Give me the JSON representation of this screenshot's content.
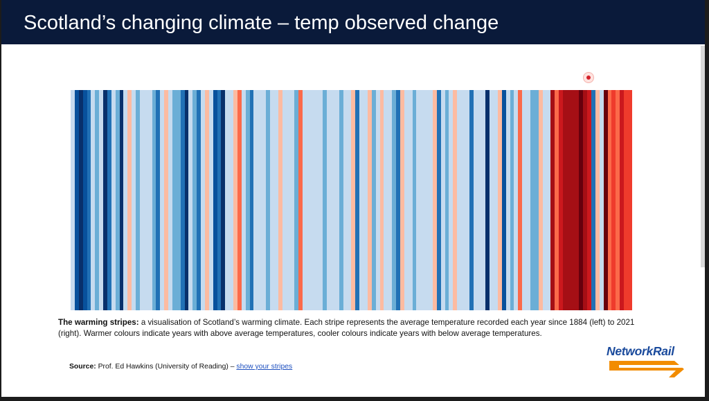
{
  "slide": {
    "title": "Scotland’s changing climate – temp observed change"
  },
  "stripes": {
    "palette": {
      "-4": "#08306b",
      "-3": "#08519c",
      "-2": "#2171b5",
      "-1": "#6baed6",
      "0": "#c6dbef",
      "1": "#fcbba1",
      "2": "#fb6a4a",
      "3": "#ef3b2c",
      "4": "#cb181d",
      "5": "#a50f15",
      "6": "#67000d"
    },
    "years_label_start": "1884",
    "years_label_end": "2021",
    "levels": [
      0,
      -3,
      -4,
      -3,
      -2,
      0,
      -1,
      0,
      -4,
      -2,
      0,
      -1,
      -4,
      0,
      1,
      0,
      -1,
      0,
      0,
      0,
      -1,
      -2,
      0,
      1,
      0,
      -1,
      -1,
      -2,
      -4,
      0,
      -1,
      -2,
      0,
      1,
      0,
      -3,
      -2,
      -4,
      0,
      0,
      1,
      2,
      0,
      -1,
      -2,
      0,
      0,
      0,
      -1,
      0,
      0,
      1,
      0,
      0,
      0,
      -1,
      2,
      0,
      0,
      0,
      0,
      0,
      -1,
      0,
      0,
      0,
      -1,
      0,
      0,
      1,
      -2,
      0,
      0,
      1,
      -1,
      0,
      1,
      0,
      0,
      -1,
      -2,
      1,
      0,
      0,
      -1,
      0,
      0,
      0,
      0,
      1,
      -2,
      0,
      -1,
      0,
      1,
      0,
      0,
      0,
      -2,
      0,
      0,
      0,
      -4,
      0,
      0,
      1,
      -3,
      0,
      -1,
      0,
      2,
      0,
      0,
      -1,
      -1,
      1,
      0,
      0,
      5,
      2,
      4,
      5,
      5,
      5,
      5,
      6,
      5,
      4,
      -2,
      1,
      0,
      6,
      2,
      3,
      2,
      4,
      3,
      3
    ]
  },
  "caption": {
    "lead": "The warming stripes:",
    "body": " a visualisation of Scotland’s warming climate. Each stripe represents the average temperature recorded each year since 1884 (left) to 2021 (right). Warmer colours indicate years with above average temperatures, cooler colours indicate years with below average temperatures."
  },
  "source": {
    "label": "Source:",
    "text": " Prof. Ed Hawkins (University of Reading) – ",
    "link": "show your stripes"
  },
  "logo": {
    "text": "NetworkRail",
    "orange": "#f28c00",
    "blue": "#1a4a9c"
  }
}
